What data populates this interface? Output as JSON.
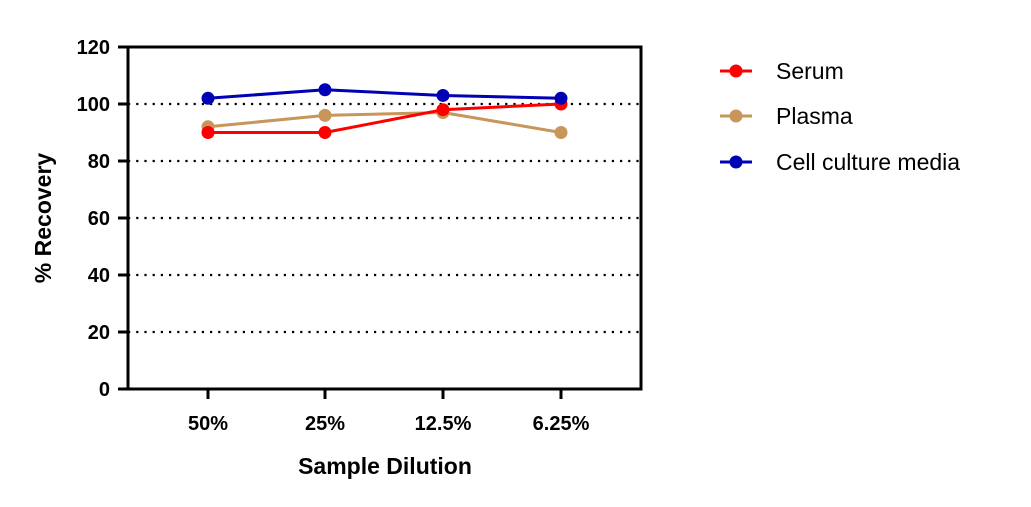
{
  "chart_data": {
    "type": "line",
    "categories": [
      "50%",
      "25%",
      "12.5%",
      "6.25%"
    ],
    "series": [
      {
        "name": "Serum",
        "color": "#ff0000",
        "values": [
          90,
          90,
          98,
          100
        ]
      },
      {
        "name": "Plasma",
        "color": "#c8965a",
        "values": [
          92,
          96,
          97,
          90
        ]
      },
      {
        "name": "Cell culture media",
        "color": "#0000b4",
        "values": [
          102,
          105,
          103,
          102
        ]
      }
    ],
    "xlabel": "Sample Dilution",
    "ylabel": "% Recovery",
    "ylim": [
      0,
      120
    ],
    "yticks": [
      0,
      20,
      40,
      60,
      80,
      100,
      120
    ],
    "grid": "horizontal dotted",
    "legend": "right"
  }
}
